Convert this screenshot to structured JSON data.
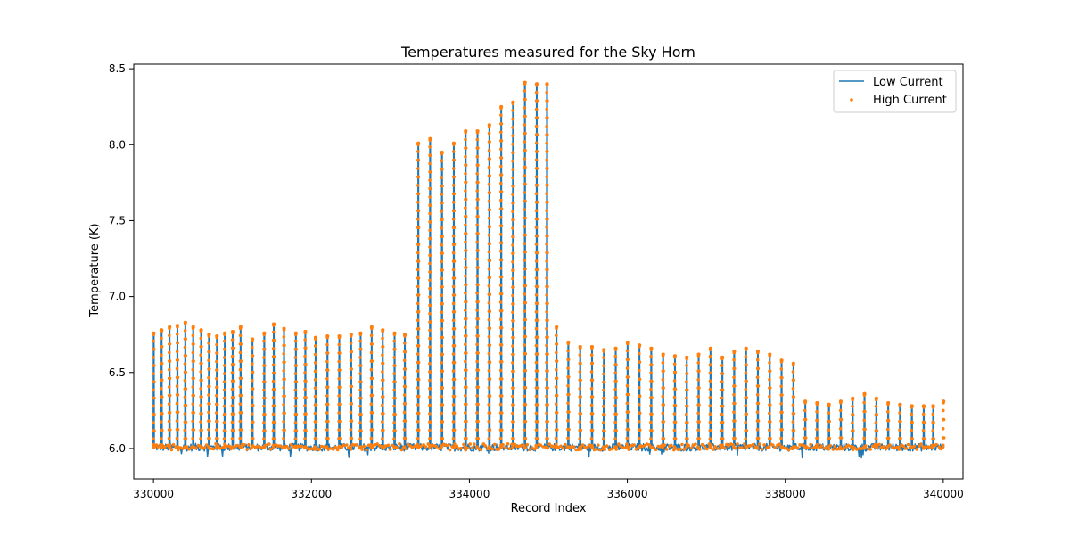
{
  "chart_data": {
    "type": "line",
    "title": "Temperatures measured for the Sky Horn",
    "xlabel": "Record Index",
    "ylabel": "Temperature (K)",
    "xlim": [
      329750,
      340250
    ],
    "ylim": [
      5.8,
      8.53
    ],
    "xticks": [
      330000,
      332000,
      334000,
      336000,
      338000,
      340000
    ],
    "yticks": [
      6.0,
      6.5,
      7.0,
      7.5,
      8.0,
      8.5
    ],
    "grid": false,
    "legend_position": "top-right",
    "baseline": 6.01,
    "series": [
      {
        "name": "Low Current",
        "render": "line",
        "color": "#1f77b4",
        "peaks": [
          {
            "x": 330000,
            "y": 6.76
          },
          {
            "x": 330100,
            "y": 6.78
          },
          {
            "x": 330200,
            "y": 6.8
          },
          {
            "x": 330300,
            "y": 6.81
          },
          {
            "x": 330400,
            "y": 6.83
          },
          {
            "x": 330500,
            "y": 6.8
          },
          {
            "x": 330600,
            "y": 6.78
          },
          {
            "x": 330700,
            "y": 6.75
          },
          {
            "x": 330800,
            "y": 6.74
          },
          {
            "x": 330900,
            "y": 6.76
          },
          {
            "x": 331000,
            "y": 6.77
          },
          {
            "x": 331100,
            "y": 6.8
          },
          {
            "x": 331250,
            "y": 6.72
          },
          {
            "x": 331400,
            "y": 6.76
          },
          {
            "x": 331520,
            "y": 6.82
          },
          {
            "x": 331650,
            "y": 6.79
          },
          {
            "x": 331800,
            "y": 6.76
          },
          {
            "x": 331920,
            "y": 6.77
          },
          {
            "x": 332050,
            "y": 6.73
          },
          {
            "x": 332200,
            "y": 6.74
          },
          {
            "x": 332350,
            "y": 6.74
          },
          {
            "x": 332500,
            "y": 6.75
          },
          {
            "x": 332620,
            "y": 6.76
          },
          {
            "x": 332760,
            "y": 6.8
          },
          {
            "x": 332900,
            "y": 6.78
          },
          {
            "x": 333050,
            "y": 6.76
          },
          {
            "x": 333180,
            "y": 6.75
          },
          {
            "x": 333350,
            "y": 8.01
          },
          {
            "x": 333500,
            "y": 8.04
          },
          {
            "x": 333650,
            "y": 7.95
          },
          {
            "x": 333800,
            "y": 8.01
          },
          {
            "x": 333950,
            "y": 8.09
          },
          {
            "x": 334100,
            "y": 8.09
          },
          {
            "x": 334250,
            "y": 8.13
          },
          {
            "x": 334400,
            "y": 8.25
          },
          {
            "x": 334550,
            "y": 8.28
          },
          {
            "x": 334700,
            "y": 8.41
          },
          {
            "x": 334850,
            "y": 8.4
          },
          {
            "x": 334980,
            "y": 8.4
          },
          {
            "x": 335100,
            "y": 6.8
          },
          {
            "x": 335250,
            "y": 6.7
          },
          {
            "x": 335400,
            "y": 6.67
          },
          {
            "x": 335550,
            "y": 6.67
          },
          {
            "x": 335700,
            "y": 6.65
          },
          {
            "x": 335850,
            "y": 6.66
          },
          {
            "x": 336000,
            "y": 6.7
          },
          {
            "x": 336150,
            "y": 6.68
          },
          {
            "x": 336300,
            "y": 6.66
          },
          {
            "x": 336450,
            "y": 6.62
          },
          {
            "x": 336600,
            "y": 6.61
          },
          {
            "x": 336750,
            "y": 6.6
          },
          {
            "x": 336900,
            "y": 6.62
          },
          {
            "x": 337050,
            "y": 6.66
          },
          {
            "x": 337200,
            "y": 6.6
          },
          {
            "x": 337350,
            "y": 6.64
          },
          {
            "x": 337500,
            "y": 6.66
          },
          {
            "x": 337650,
            "y": 6.64
          },
          {
            "x": 337800,
            "y": 6.62
          },
          {
            "x": 337950,
            "y": 6.58
          },
          {
            "x": 338100,
            "y": 6.56
          },
          {
            "x": 338250,
            "y": 6.31
          },
          {
            "x": 338400,
            "y": 6.3
          },
          {
            "x": 338550,
            "y": 6.29
          },
          {
            "x": 338700,
            "y": 6.31
          },
          {
            "x": 338850,
            "y": 6.33
          },
          {
            "x": 339000,
            "y": 6.36
          },
          {
            "x": 339150,
            "y": 6.33
          },
          {
            "x": 339300,
            "y": 6.3
          },
          {
            "x": 339450,
            "y": 6.29
          },
          {
            "x": 339600,
            "y": 6.28
          },
          {
            "x": 339750,
            "y": 6.28
          },
          {
            "x": 339870,
            "y": 6.28
          },
          {
            "x": 340000,
            "y": 6.31
          }
        ]
      },
      {
        "name": "High Current",
        "render": "scatter",
        "color": "#ff7f0e",
        "peaks": "same as Low Current"
      }
    ]
  }
}
